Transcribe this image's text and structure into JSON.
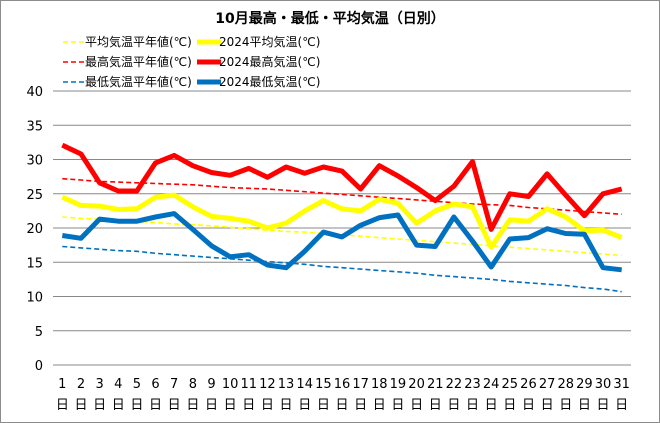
{
  "chart_data": {
    "type": "line",
    "title": "10月最高・最低・平均気温（日別）",
    "x": [
      "1",
      "2",
      "3",
      "4",
      "5",
      "6",
      "7",
      "8",
      "9",
      "10",
      "11",
      "12",
      "13",
      "14",
      "15",
      "16",
      "17",
      "18",
      "19",
      "20",
      "21",
      "22",
      "23",
      "24",
      "25",
      "26",
      "27",
      "28",
      "29",
      "30",
      "31"
    ],
    "x_suffix": "日",
    "ylim": [
      0,
      40
    ],
    "yticks": [
      0,
      5,
      10,
      15,
      20,
      25,
      30,
      35,
      40
    ],
    "grid": true,
    "legend_position": "top-left",
    "series": [
      {
        "name": "平均気温平年値(℃)",
        "color": "#ffff00",
        "dashed": true,
        "values": [
          21.6,
          21.4,
          21.3,
          21.1,
          21.0,
          20.8,
          20.6,
          20.5,
          20.3,
          20.1,
          19.9,
          19.7,
          19.5,
          19.4,
          19.2,
          19.0,
          18.8,
          18.6,
          18.4,
          18.2,
          18.0,
          17.8,
          17.6,
          17.4,
          17.2,
          17.0,
          16.8,
          16.6,
          16.4,
          16.2,
          16.0
        ]
      },
      {
        "name": "2024平均気温(℃)",
        "color": "#ffff00",
        "dashed": false,
        "values": [
          24.5,
          23.3,
          23.2,
          22.7,
          22.8,
          24.5,
          24.8,
          23.1,
          21.7,
          21.4,
          21.0,
          20.0,
          20.7,
          22.5,
          24.0,
          22.8,
          22.5,
          24.2,
          23.6,
          20.7,
          22.5,
          23.5,
          23.1,
          17.2,
          21.2,
          21.0,
          22.8,
          21.6,
          19.6,
          19.7,
          18.6
        ]
      },
      {
        "name": "最高気温平年値(℃)",
        "color": "#ff0000",
        "dashed": true,
        "values": [
          27.2,
          27.0,
          26.8,
          26.7,
          26.6,
          26.5,
          26.4,
          26.3,
          26.1,
          25.9,
          25.8,
          25.7,
          25.5,
          25.3,
          25.1,
          24.9,
          24.7,
          24.5,
          24.3,
          24.1,
          23.9,
          23.7,
          23.5,
          23.4,
          23.3,
          23.0,
          22.8,
          22.6,
          22.4,
          22.2,
          22.0
        ]
      },
      {
        "name": "2024最高気温(℃)",
        "color": "#ff0000",
        "dashed": false,
        "values": [
          32.1,
          30.8,
          26.6,
          25.4,
          25.4,
          29.5,
          30.6,
          29.1,
          28.1,
          27.7,
          28.7,
          27.4,
          28.9,
          28.0,
          28.9,
          28.3,
          25.7,
          29.1,
          27.6,
          25.9,
          24.0,
          26.1,
          29.7,
          19.8,
          25.0,
          24.6,
          27.9,
          24.8,
          21.8,
          25.0,
          25.7
        ]
      },
      {
        "name": "最低気温平年値(℃)",
        "color": "#0070c0",
        "dashed": true,
        "values": [
          17.3,
          17.1,
          16.9,
          16.7,
          16.6,
          16.3,
          16.1,
          15.9,
          15.7,
          15.5,
          15.3,
          15.1,
          14.9,
          14.7,
          14.4,
          14.2,
          14.0,
          13.8,
          13.6,
          13.4,
          13.1,
          12.9,
          12.7,
          12.5,
          12.2,
          12.0,
          11.8,
          11.6,
          11.3,
          11.1,
          10.7
        ]
      },
      {
        "name": "2024最低気温(℃)",
        "color": "#0070c0",
        "dashed": false,
        "values": [
          18.9,
          18.5,
          21.3,
          21.0,
          21.0,
          21.6,
          22.1,
          19.8,
          17.4,
          15.8,
          16.1,
          14.6,
          14.2,
          16.6,
          19.4,
          18.7,
          20.4,
          21.5,
          21.9,
          17.5,
          17.3,
          21.6,
          18.1,
          14.3,
          18.4,
          18.6,
          19.9,
          19.2,
          19.1,
          14.2,
          13.9
        ]
      }
    ]
  }
}
